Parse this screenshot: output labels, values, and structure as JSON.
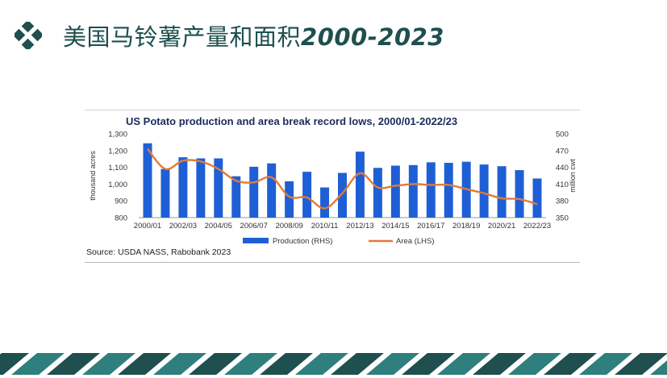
{
  "slide": {
    "title_cn": "美国马铃薯产量和面积",
    "title_years": "2000-2023",
    "accent_color": "#1f4f4f"
  },
  "chart_data": {
    "type": "bar",
    "title": "US Potato production and area break record lows, 2000/01-2022/23",
    "source": "Source: USDA NASS, Rabobank 2023",
    "categories": [
      "2000/01",
      "2001/02",
      "2002/03",
      "2003/04",
      "2004/05",
      "2005/06",
      "2006/07",
      "2007/08",
      "2008/09",
      "2009/10",
      "2010/11",
      "2011/12",
      "2012/13",
      "2013/14",
      "2014/15",
      "2015/16",
      "2016/17",
      "2017/18",
      "2018/19",
      "2019/20",
      "2020/21",
      "2021/22",
      "2022/23"
    ],
    "x_tick_labels": [
      "2000/01",
      "",
      "2002/03",
      "",
      "2004/05",
      "",
      "2006/07",
      "",
      "2008/09",
      "",
      "2010/11",
      "",
      "2012/13",
      "",
      "2014/15",
      "",
      "2016/17",
      "",
      "2018/19",
      "",
      "2020/21",
      "",
      "2022/23"
    ],
    "series": [
      {
        "name": "Production (RHS)",
        "type": "bar",
        "axis": "right",
        "color": "#1f5fd6",
        "values": [
          483,
          437,
          458,
          456,
          456,
          424,
          441,
          447,
          415,
          432,
          404,
          430,
          468,
          439,
          443,
          444,
          449,
          448,
          450,
          445,
          442,
          435,
          420
        ]
      },
      {
        "name": "Area (LHS)",
        "type": "line",
        "axis": "left",
        "color": "#e07b39",
        "values": [
          1210,
          1090,
          1140,
          1135,
          1090,
          1020,
          1010,
          1040,
          925,
          920,
          855,
          945,
          1065,
          980,
          990,
          1000,
          995,
          995,
          970,
          945,
          915,
          910,
          880
        ]
      }
    ],
    "y_left": {
      "label": "thousand acres",
      "min": 800,
      "max": 1300,
      "ticks": [
        "1,300",
        "1,200",
        "1,100",
        "1,000",
        "900",
        "800"
      ]
    },
    "y_right": {
      "label": "million cwt",
      "min": 350,
      "max": 500,
      "ticks": [
        "500",
        "470",
        "440",
        "410",
        "380",
        "350"
      ]
    },
    "legend": [
      "Production (RHS)",
      "Area (LHS)"
    ],
    "legend_position": "bottom"
  }
}
